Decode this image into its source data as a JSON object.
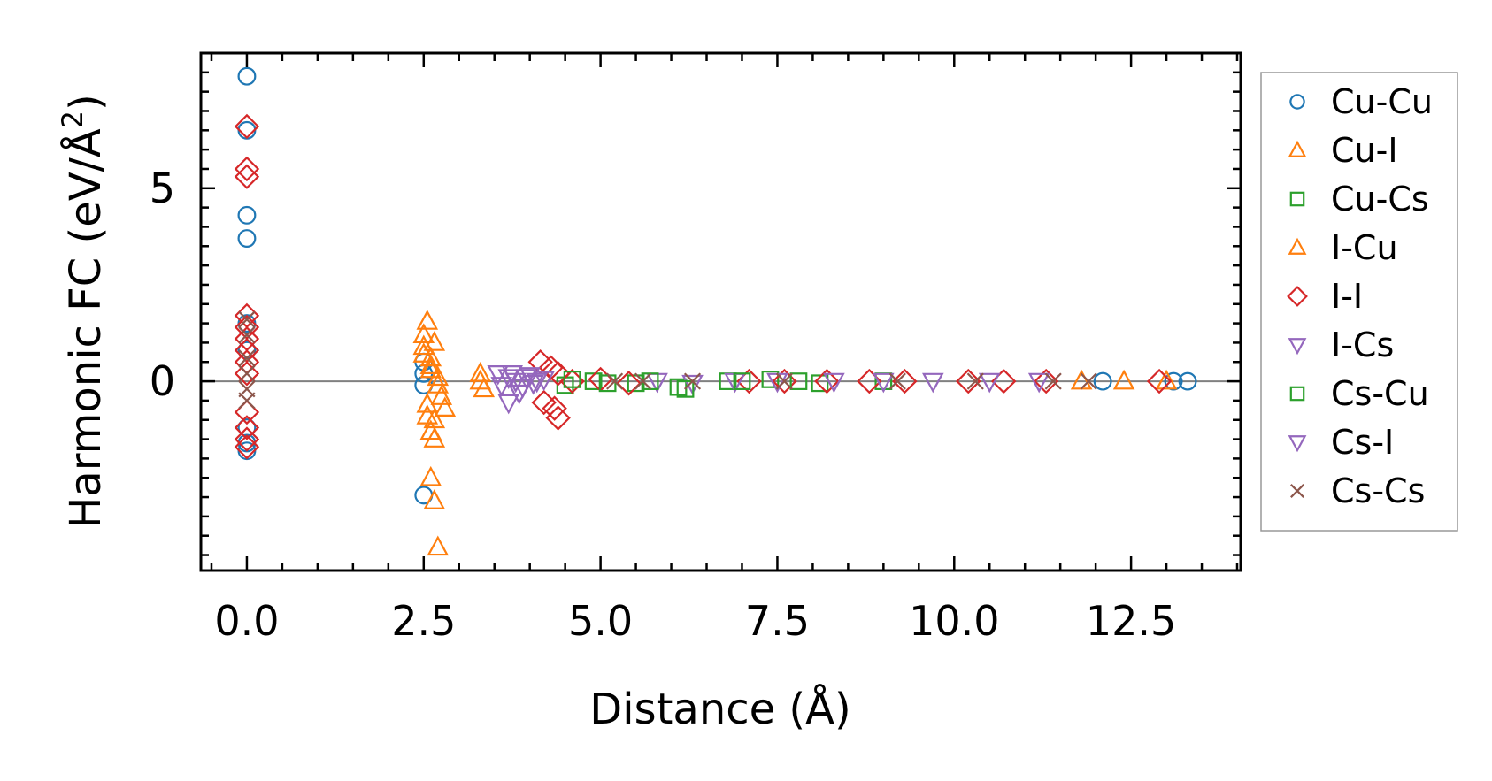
{
  "chart_data": {
    "type": "scatter",
    "xlabel": "Distance (Å)",
    "ylabel_main": "Harmonic FC (eV/Å",
    "ylabel_sup": "2",
    "ylabel_end": ")",
    "xlim": [
      -0.65,
      14.05
    ],
    "ylim": [
      -4.9,
      8.5
    ],
    "xticks": [
      0.0,
      2.5,
      5.0,
      7.5,
      10.0,
      12.5
    ],
    "xtick_labels": [
      "0.0",
      "2.5",
      "5.0",
      "7.5",
      "10.0",
      "12.5"
    ],
    "yticks": [
      0,
      5
    ],
    "ytick_labels": [
      "0",
      "5"
    ],
    "zero_line": true,
    "grid": false,
    "legend_position": "outside-right",
    "series": [
      {
        "name": "Cu-Cu",
        "marker": "circle",
        "color": "#1f77b4",
        "x": [
          0,
          0,
          0,
          0,
          0,
          0,
          0,
          0,
          0,
          2.5,
          2.5,
          2.5,
          2.5,
          12.1,
          13.1,
          13.3
        ],
        "y": [
          7.9,
          6.5,
          4.3,
          3.7,
          1.5,
          0.8,
          -1.2,
          -1.6,
          -1.8,
          0.5,
          0.2,
          -0.1,
          -2.95,
          0.0,
          0.0,
          0.0
        ]
      },
      {
        "name": "Cu-I",
        "marker": "triangle-up",
        "color": "#ff7f0e",
        "x": [
          2.5,
          2.5,
          2.55,
          2.6,
          2.6,
          2.65,
          2.7,
          2.55,
          2.6,
          2.65,
          2.75,
          2.8,
          2.6,
          2.65,
          2.7,
          3.3,
          3.35,
          12.4,
          13.0
        ],
        "y": [
          1.2,
          0.9,
          1.55,
          0.6,
          0.3,
          1.0,
          0.1,
          -0.6,
          -1.3,
          -1.0,
          -0.4,
          -0.7,
          -2.5,
          -3.1,
          -4.3,
          0.2,
          -0.2,
          0.0,
          0.0
        ]
      },
      {
        "name": "Cu-Cs",
        "marker": "square",
        "color": "#2ca02c",
        "x": [
          4.5,
          4.9,
          5.5,
          6.1,
          6.8,
          7.4,
          8.1,
          9.0
        ],
        "y": [
          -0.1,
          0.0,
          -0.05,
          -0.15,
          0.0,
          0.05,
          -0.05,
          0.0
        ]
      },
      {
        "name": "I-Cu",
        "marker": "triangle-up",
        "color": "#ff7f0e",
        "x": [
          2.5,
          2.6,
          2.7,
          2.55,
          2.65,
          3.3,
          11.8
        ],
        "y": [
          0.7,
          0.4,
          -0.1,
          -0.9,
          -1.5,
          0.0,
          0.0
        ]
      },
      {
        "name": "I-I",
        "marker": "diamond",
        "color": "#d62728",
        "x": [
          0,
          0,
          0,
          0,
          0,
          0,
          0,
          0,
          0,
          0,
          0,
          0,
          0,
          4.15,
          4.3,
          4.4,
          4.2,
          4.35,
          4.4,
          4.6,
          5.0,
          5.4,
          7.1,
          7.6,
          8.2,
          8.8,
          9.3,
          10.2,
          10.7,
          11.3,
          12.9
        ],
        "y": [
          6.6,
          5.5,
          5.3,
          1.7,
          1.4,
          1.1,
          0.8,
          0.5,
          0.2,
          -0.8,
          -1.2,
          -1.5,
          -1.7,
          0.5,
          0.35,
          0.2,
          -0.55,
          -0.7,
          -0.95,
          0.0,
          0.05,
          -0.05,
          0.0,
          0.0,
          0.0,
          0.0,
          0.0,
          0.0,
          0.0,
          0.0,
          0.0
        ]
      },
      {
        "name": "I-Cs",
        "marker": "triangle-down",
        "color": "#9467bd",
        "x": [
          3.55,
          3.7,
          3.8,
          3.9,
          4.0,
          4.1,
          4.2,
          5.8,
          6.3,
          6.9,
          7.5,
          8.3,
          9.0,
          9.7,
          10.5,
          11.2
        ],
        "y": [
          0.2,
          0.1,
          0.0,
          -0.15,
          0.15,
          0.0,
          0.05,
          0.0,
          -0.05,
          0.0,
          0.0,
          0.0,
          0.0,
          0.0,
          0.0,
          0.0
        ]
      },
      {
        "name": "Cs-Cu",
        "marker": "square",
        "color": "#2ca02c",
        "x": [
          4.6,
          5.1,
          5.7,
          6.2,
          7.0,
          7.8
        ],
        "y": [
          0.05,
          -0.05,
          0.0,
          -0.2,
          0.0,
          0.0
        ]
      },
      {
        "name": "Cs-I",
        "marker": "triangle-down",
        "color": "#9467bd",
        "x": [
          3.6,
          3.75,
          3.85,
          3.95,
          4.05,
          3.7
        ],
        "y": [
          -0.1,
          0.2,
          -0.3,
          0.1,
          -0.05,
          -0.55
        ]
      },
      {
        "name": "Cs-Cs",
        "marker": "x",
        "color": "#8c564b",
        "x": [
          0,
          0,
          0,
          0,
          0,
          0,
          5.2,
          5.6,
          6.3,
          7.6,
          9.2,
          10.3,
          11.4,
          11.9
        ],
        "y": [
          1.6,
          1.2,
          0.6,
          0.2,
          -0.2,
          -0.5,
          0.0,
          0.0,
          0.0,
          0.0,
          0.0,
          0.0,
          0.0,
          0.0
        ]
      }
    ]
  }
}
